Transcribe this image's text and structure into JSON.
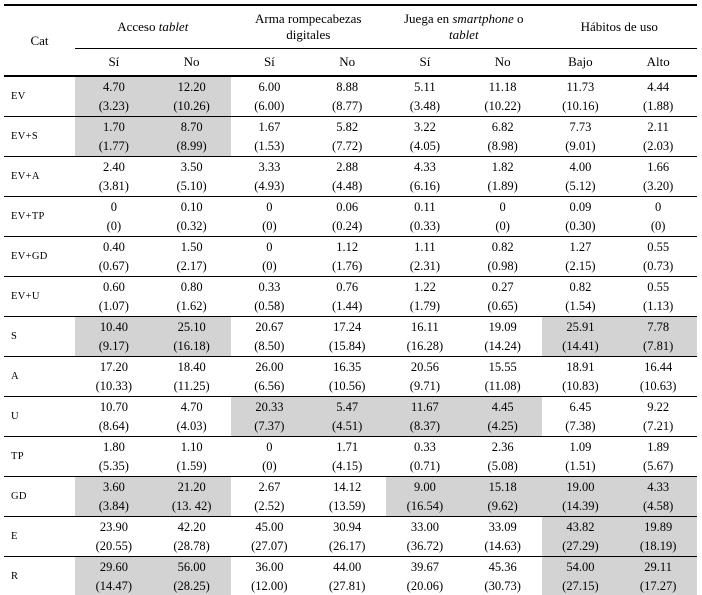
{
  "accent": {
    "highlight": "#d3d3d3"
  },
  "table": {
    "cat_header": "Cat",
    "groups": [
      {
        "name": "acceso-tablet",
        "parts": [
          "Acceso ",
          {
            "i": "tablet"
          }
        ],
        "cols": [
          "Sí",
          "No"
        ]
      },
      {
        "name": "arma-rompecabezas-digitales",
        "parts": [
          "Arma rompecabezas digitales"
        ],
        "cols": [
          "Sí",
          "No"
        ]
      },
      {
        "name": "juega-en-smartphone-o-tablet",
        "parts": [
          "Juega en ",
          {
            "i": "smartphone"
          },
          " o ",
          {
            "i": "tablet"
          }
        ],
        "cols": [
          "Sí",
          "No"
        ]
      },
      {
        "name": "habitos-de-uso",
        "parts": [
          "Hábitos de uso"
        ],
        "cols": [
          "Bajo",
          "Alto"
        ]
      }
    ],
    "rows": [
      {
        "cat": "EV",
        "cells": [
          {
            "m": "4.70",
            "sd": "(3.23)",
            "hl": true
          },
          {
            "m": "12.20",
            "sd": "(10.26)",
            "hl": true
          },
          {
            "m": "6.00",
            "sd": "(6.00)",
            "hl": false
          },
          {
            "m": "8.88",
            "sd": "(8.77)",
            "hl": false
          },
          {
            "m": "5.11",
            "sd": "(3.48)",
            "hl": false
          },
          {
            "m": "11.18",
            "sd": "(10.22)",
            "hl": false
          },
          {
            "m": "11.73",
            "sd": "(10.16)",
            "hl": false
          },
          {
            "m": "4.44",
            "sd": "(1.88)",
            "hl": false
          }
        ]
      },
      {
        "cat": "EV+S",
        "cells": [
          {
            "m": "1.70",
            "sd": "(1.77)",
            "hl": true
          },
          {
            "m": "8.70",
            "sd": "(8.99)",
            "hl": true
          },
          {
            "m": "1.67",
            "sd": "(1.53)",
            "hl": false
          },
          {
            "m": "5.82",
            "sd": "(7.72)",
            "hl": false
          },
          {
            "m": "3.22",
            "sd": "(4.05)",
            "hl": false
          },
          {
            "m": "6.82",
            "sd": "(8.98)",
            "hl": false
          },
          {
            "m": "7.73",
            "sd": "(9.01)",
            "hl": false
          },
          {
            "m": "2.11",
            "sd": "(2.03)",
            "hl": false
          }
        ]
      },
      {
        "cat": "EV+A",
        "cells": [
          {
            "m": "2.40",
            "sd": "(3.81)",
            "hl": false
          },
          {
            "m": "3.50",
            "sd": "(5.10)",
            "hl": false
          },
          {
            "m": "3.33",
            "sd": "(4.93)",
            "hl": false
          },
          {
            "m": "2.88",
            "sd": "(4.48)",
            "hl": false
          },
          {
            "m": "4.33",
            "sd": "(6.16)",
            "hl": false
          },
          {
            "m": "1.82",
            "sd": "(1.89)",
            "hl": false
          },
          {
            "m": "4.00",
            "sd": "(5.12)",
            "hl": false
          },
          {
            "m": "1.66",
            "sd": "(3.20)",
            "hl": false
          }
        ]
      },
      {
        "cat": "EV+TP",
        "cells": [
          {
            "m": "0",
            "sd": "(0)",
            "hl": false
          },
          {
            "m": "0.10",
            "sd": "(0.32)",
            "hl": false
          },
          {
            "m": "0",
            "sd": "(0)",
            "hl": false
          },
          {
            "m": "0.06",
            "sd": "(0.24)",
            "hl": false
          },
          {
            "m": "0.11",
            "sd": "(0.33)",
            "hl": false
          },
          {
            "m": "0",
            "sd": "(0)",
            "hl": false
          },
          {
            "m": "0.09",
            "sd": "(0.30)",
            "hl": false
          },
          {
            "m": "0",
            "sd": "(0)",
            "hl": false
          }
        ]
      },
      {
        "cat": "EV+GD",
        "cells": [
          {
            "m": "0.40",
            "sd": "(0.67)",
            "hl": false
          },
          {
            "m": "1.50",
            "sd": "(2.17)",
            "hl": false
          },
          {
            "m": "0",
            "sd": "(0)",
            "hl": false
          },
          {
            "m": "1.12",
            "sd": "(1.76)",
            "hl": false
          },
          {
            "m": "1.11",
            "sd": "(2.31)",
            "hl": false
          },
          {
            "m": "0.82",
            "sd": "(0.98)",
            "hl": false
          },
          {
            "m": "1.27",
            "sd": "(2.15)",
            "hl": false
          },
          {
            "m": "0.55",
            "sd": "(0.73)",
            "hl": false
          }
        ]
      },
      {
        "cat": "EV+U",
        "cells": [
          {
            "m": "0.60",
            "sd": "(1.07)",
            "hl": false
          },
          {
            "m": "0.80",
            "sd": "(1.62)",
            "hl": false
          },
          {
            "m": "0.33",
            "sd": "(0.58)",
            "hl": false
          },
          {
            "m": "0.76",
            "sd": "(1.44)",
            "hl": false
          },
          {
            "m": "1.22",
            "sd": "(1.79)",
            "hl": false
          },
          {
            "m": "0.27",
            "sd": "(0.65)",
            "hl": false
          },
          {
            "m": "0.82",
            "sd": "(1.54)",
            "hl": false
          },
          {
            "m": "0.55",
            "sd": "(1.13)",
            "hl": false
          }
        ]
      },
      {
        "cat": "S",
        "cells": [
          {
            "m": "10.40",
            "sd": "(9.17)",
            "hl": true
          },
          {
            "m": "25.10",
            "sd": "(16.18)",
            "hl": true
          },
          {
            "m": "20.67",
            "sd": "(8.50)",
            "hl": false
          },
          {
            "m": "17.24",
            "sd": "(15.84)",
            "hl": false
          },
          {
            "m": "16.11",
            "sd": "(16.28)",
            "hl": false
          },
          {
            "m": "19.09",
            "sd": "(14.24)",
            "hl": false
          },
          {
            "m": "25.91",
            "sd": "(14.41)",
            "hl": true
          },
          {
            "m": "7.78",
            "sd": "(7.81)",
            "hl": true
          }
        ]
      },
      {
        "cat": "A",
        "cells": [
          {
            "m": "17.20",
            "sd": "(10.33)",
            "hl": false
          },
          {
            "m": "18.40",
            "sd": "(11.25)",
            "hl": false
          },
          {
            "m": "26.00",
            "sd": "(6.56)",
            "hl": false
          },
          {
            "m": "16.35",
            "sd": "(10.56)",
            "hl": false
          },
          {
            "m": "20.56",
            "sd": "(9.71)",
            "hl": false
          },
          {
            "m": "15.55",
            "sd": "(11.08)",
            "hl": false
          },
          {
            "m": "18.91",
            "sd": "(10.83)",
            "hl": false
          },
          {
            "m": "16.44",
            "sd": "(10.63)",
            "hl": false
          }
        ]
      },
      {
        "cat": "U",
        "cells": [
          {
            "m": "10.70",
            "sd": "(8.64)",
            "hl": false
          },
          {
            "m": "4.70",
            "sd": "(4.03)",
            "hl": false
          },
          {
            "m": "20.33",
            "sd": "(7.37)",
            "hl": true
          },
          {
            "m": "5.47",
            "sd": "(4.51)",
            "hl": true
          },
          {
            "m": "11.67",
            "sd": "(8.37)",
            "hl": true
          },
          {
            "m": "4.45",
            "sd": "(4.25)",
            "hl": true
          },
          {
            "m": "6.45",
            "sd": "(7.38)",
            "hl": false
          },
          {
            "m": "9.22",
            "sd": "(7.21)",
            "hl": false
          }
        ]
      },
      {
        "cat": "TP",
        "cells": [
          {
            "m": "1.80",
            "sd": "(5.35)",
            "hl": false
          },
          {
            "m": "1.10",
            "sd": "(1.59)",
            "hl": false
          },
          {
            "m": "0",
            "sd": "(0)",
            "hl": false
          },
          {
            "m": "1.71",
            "sd": "(4.15)",
            "hl": false
          },
          {
            "m": "0.33",
            "sd": "(0.71)",
            "hl": false
          },
          {
            "m": "2.36",
            "sd": "(5.08)",
            "hl": false
          },
          {
            "m": "1.09",
            "sd": "(1.51)",
            "hl": false
          },
          {
            "m": "1.89",
            "sd": "(5.67)",
            "hl": false
          }
        ]
      },
      {
        "cat": "GD",
        "cells": [
          {
            "m": "3.60",
            "sd": "(3.84)",
            "hl": true
          },
          {
            "m": "21.20",
            "sd": "(13. 42)",
            "hl": true
          },
          {
            "m": "2.67",
            "sd": "(2.52)",
            "hl": false
          },
          {
            "m": "14.12",
            "sd": "(13.59)",
            "hl": false
          },
          {
            "m": "9.00",
            "sd": "(16.54)",
            "hl": true
          },
          {
            "m": "15.18",
            "sd": "(9.62)",
            "hl": true
          },
          {
            "m": "19.00",
            "sd": "(14.39)",
            "hl": true
          },
          {
            "m": "4.33",
            "sd": "(4.58)",
            "hl": true
          }
        ]
      },
      {
        "cat": "E",
        "cells": [
          {
            "m": "23.90",
            "sd": "(20.55)",
            "hl": false
          },
          {
            "m": "42.20",
            "sd": "(28.78)",
            "hl": false
          },
          {
            "m": "45.00",
            "sd": "(27.07)",
            "hl": false
          },
          {
            "m": "30.94",
            "sd": "(26.17)",
            "hl": false
          },
          {
            "m": "33.00",
            "sd": "(36.72)",
            "hl": false
          },
          {
            "m": "33.09",
            "sd": "(14.63)",
            "hl": false
          },
          {
            "m": "43.82",
            "sd": "(27.29)",
            "hl": true
          },
          {
            "m": "19.89",
            "sd": "(18.19)",
            "hl": true
          }
        ]
      },
      {
        "cat": "R",
        "cells": [
          {
            "m": "29.60",
            "sd": "(14.47)",
            "hl": true
          },
          {
            "m": "56.00",
            "sd": "(28.25)",
            "hl": true
          },
          {
            "m": "36.00",
            "sd": "(12.00)",
            "hl": false
          },
          {
            "m": "44.00",
            "sd": "(27.81)",
            "hl": false
          },
          {
            "m": "39.67",
            "sd": "(20.06)",
            "hl": false
          },
          {
            "m": "45.36",
            "sd": "(30.73)",
            "hl": false
          },
          {
            "m": "54.00",
            "sd": "(27.15)",
            "hl": true
          },
          {
            "m": "29.11",
            "sd": "(17.27)",
            "hl": true
          }
        ]
      }
    ]
  }
}
